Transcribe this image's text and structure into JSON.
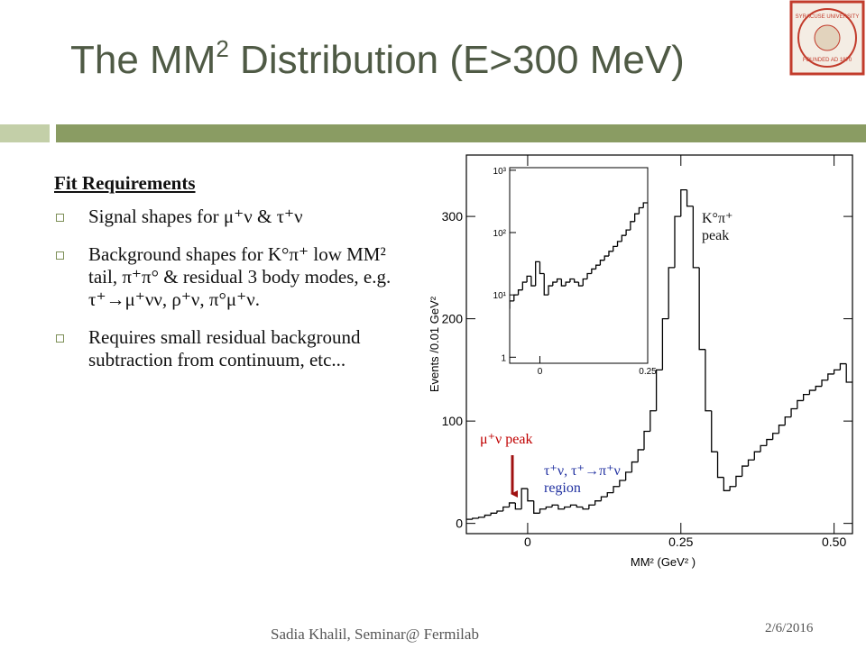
{
  "slide": {
    "title_parts": [
      "The MM",
      "2",
      " Distribution (E>300 MeV)"
    ],
    "heading": "Fit Requirements",
    "bullets": [
      "Signal shapes for μ⁺ν & τ⁺ν",
      "Background shapes for K°π⁺ low MM² tail, π⁺π° & residual 3 body modes, e.g. τ⁺→μ⁺νν, ρ⁺ν, π°μ⁺ν.",
      "Requires small residual background subtraction from continuum, etc..."
    ],
    "footer": "Sadia Khalil, Seminar@ Fermilab",
    "date": "2/6/2016",
    "logo": [
      "SYRACUSE UNIVERSITY",
      "FOUNDED AD 1870"
    ]
  },
  "chart_data": {
    "type": "histogram",
    "bins": [
      -0.1,
      -0.09,
      -0.08,
      -0.07,
      -0.06,
      -0.05,
      -0.04,
      -0.03,
      -0.02,
      -0.01,
      0.0,
      0.01,
      0.02,
      0.03,
      0.04,
      0.05,
      0.06,
      0.07,
      0.08,
      0.09,
      0.1,
      0.11,
      0.12,
      0.13,
      0.14,
      0.15,
      0.16,
      0.17,
      0.18,
      0.19,
      0.2,
      0.21,
      0.22,
      0.23,
      0.24,
      0.25,
      0.26,
      0.27,
      0.28,
      0.29,
      0.3,
      0.31,
      0.32,
      0.33,
      0.34,
      0.35,
      0.36,
      0.37,
      0.38,
      0.39,
      0.4,
      0.41,
      0.42,
      0.43,
      0.44,
      0.45,
      0.46,
      0.47,
      0.48,
      0.49,
      0.5,
      0.51,
      0.52,
      0.53
    ],
    "values": [
      4,
      5,
      6,
      8,
      10,
      12,
      16,
      20,
      14,
      34,
      22,
      10,
      14,
      16,
      18,
      14,
      16,
      18,
      16,
      14,
      18,
      22,
      26,
      30,
      36,
      42,
      50,
      60,
      72,
      90,
      110,
      150,
      200,
      250,
      300,
      326,
      310,
      250,
      170,
      110,
      70,
      45,
      32,
      36,
      46,
      56,
      62,
      70,
      76,
      82,
      88,
      96,
      104,
      112,
      120,
      126,
      130,
      134,
      140,
      146,
      150,
      156,
      138
    ],
    "color": "#000000",
    "xlabel": "MM² (GeV² )",
    "ylabel": "Events /0.01 GeV²",
    "xlim": [
      -0.1,
      0.53
    ],
    "xticks": [
      0,
      0.25,
      {
        "value": 0.5,
        "label": "0.50"
      }
    ],
    "ylim": [
      -10,
      360
    ],
    "yticks": [
      0,
      100,
      200,
      300
    ],
    "inset": {
      "xlim": [
        -0.07,
        0.25
      ],
      "xticks": [
        0,
        0.25
      ],
      "ylim": [
        0.8,
        1100
      ],
      "log_y": true,
      "yticks": [
        1,
        {
          "value": 10,
          "label": "10¹"
        },
        {
          "value": 100,
          "label": "10²"
        },
        {
          "value": 1000,
          "label": "10³"
        }
      ]
    },
    "annotations": [
      {
        "lines": [
          "K°π⁺",
          "peak"
        ],
        "color": "#111111"
      },
      {
        "lines": [
          "μ⁺ν peak"
        ],
        "color": "#c00000"
      },
      {
        "lines": [
          "τ⁺ν, τ⁺→π⁺ν",
          "region"
        ],
        "color": "#2030a0"
      }
    ]
  }
}
